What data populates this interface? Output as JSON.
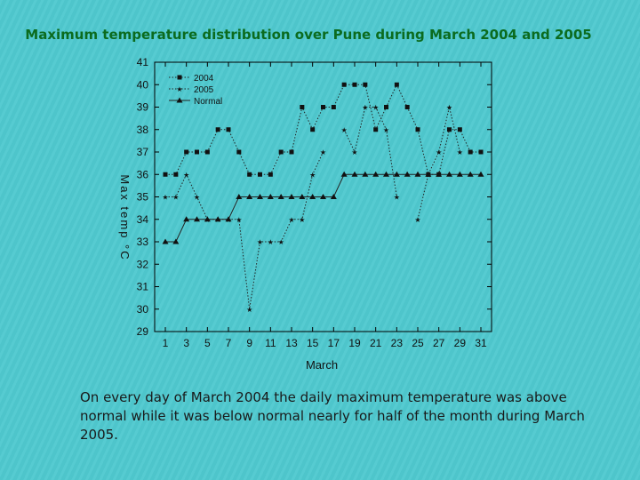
{
  "slide": {
    "title": "Maximum temperature distribution over Pune during March 2004 and 2005",
    "body": "On every day of March 2004 the daily maximum temperature was above normal while it was below normal nearly for half of the month during March 2005."
  },
  "chart_data": {
    "type": "line",
    "title": "",
    "xlabel": "March",
    "ylabel": "Max temp °C",
    "ylim": [
      29,
      41
    ],
    "xlim": [
      1,
      31
    ],
    "yticks": [
      29,
      30,
      31,
      32,
      33,
      34,
      35,
      36,
      37,
      38,
      39,
      40,
      41
    ],
    "xticks": [
      1,
      3,
      5,
      7,
      9,
      11,
      13,
      15,
      17,
      19,
      21,
      23,
      25,
      27,
      29,
      31
    ],
    "grid": false,
    "legend_position": "top-left",
    "x": [
      1,
      2,
      3,
      4,
      5,
      6,
      7,
      8,
      9,
      10,
      11,
      12,
      13,
      14,
      15,
      16,
      17,
      18,
      19,
      20,
      21,
      22,
      23,
      24,
      25,
      26,
      27,
      28,
      29,
      30,
      31
    ],
    "series": [
      {
        "name": "2004",
        "marker": "square",
        "line_style": "dotted",
        "values": [
          36,
          36,
          37,
          37,
          37,
          38,
          38,
          37,
          36,
          36,
          36,
          37,
          37,
          39,
          38,
          39,
          39,
          40,
          40,
          40,
          38,
          39,
          40,
          39,
          38,
          36,
          36,
          38,
          38,
          37,
          37
        ]
      },
      {
        "name": "2005",
        "marker": "star",
        "line_style": "dotted",
        "values": [
          35,
          35,
          36,
          35,
          34,
          34,
          34,
          34,
          30,
          33,
          33,
          33,
          34,
          34,
          36,
          37,
          null,
          38,
          37,
          39,
          39,
          38,
          35,
          null,
          34,
          36,
          37,
          39,
          37,
          null,
          null
        ]
      },
      {
        "name": "Normal",
        "marker": "triangle",
        "line_style": "solid",
        "values": [
          33,
          33,
          34,
          34,
          34,
          34,
          34,
          35,
          35,
          35,
          35,
          35,
          35,
          35,
          35,
          35,
          35,
          36,
          36,
          36,
          36,
          36,
          36,
          36,
          36,
          36,
          36,
          36,
          36,
          36,
          36
        ]
      }
    ]
  }
}
